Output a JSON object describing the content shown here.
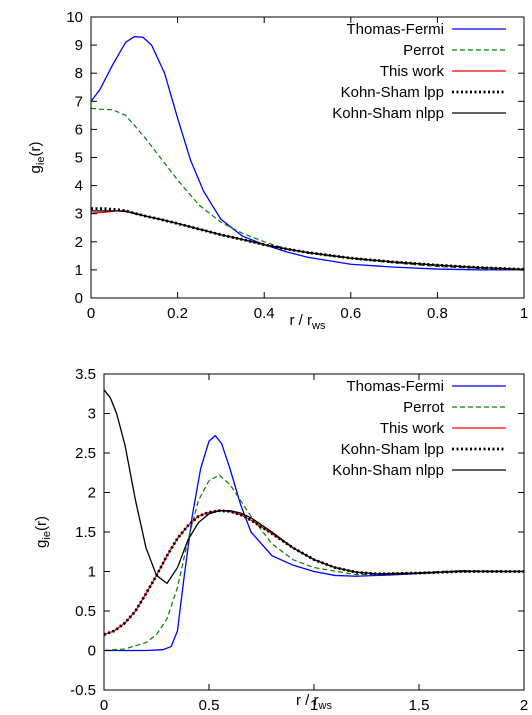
{
  "chart_data": [
    {
      "type": "line",
      "title": "",
      "xlabel_main": "r / r",
      "xlabel_sub": "ws",
      "ylabel_main": "g",
      "ylabel_sub": "ie",
      "ylabel_tail": "(r)",
      "xlim": [
        0,
        1
      ],
      "ylim": [
        0,
        10
      ],
      "xticks": [
        0,
        0.2,
        0.4,
        0.6,
        0.8,
        1
      ],
      "xtick_labels": [
        "0",
        "0.2",
        "0.4",
        "0.6",
        "0.8",
        "1"
      ],
      "yticks": [
        0,
        1,
        2,
        3,
        4,
        5,
        6,
        7,
        8,
        9,
        10
      ],
      "ytick_labels": [
        "0",
        "1",
        "2",
        "3",
        "4",
        "5",
        "6",
        "7",
        "8",
        "9",
        "10"
      ],
      "grid": false,
      "legend_position": "top-right",
      "series": [
        {
          "name": "Thomas-Fermi",
          "color": "#0000ff",
          "dash": "solid",
          "x": [
            0,
            0.02,
            0.05,
            0.08,
            0.1,
            0.12,
            0.14,
            0.17,
            0.2,
            0.23,
            0.26,
            0.3,
            0.35,
            0.4,
            0.45,
            0.5,
            0.6,
            0.7,
            0.8,
            0.9,
            1.0
          ],
          "y": [
            7.0,
            7.4,
            8.3,
            9.1,
            9.3,
            9.28,
            9.0,
            8.0,
            6.4,
            4.9,
            3.8,
            2.8,
            2.2,
            1.9,
            1.65,
            1.45,
            1.2,
            1.1,
            1.03,
            1.0,
            1.0
          ]
        },
        {
          "name": "Perrot",
          "color": "#008000",
          "dash": "dashed",
          "x": [
            0,
            0.02,
            0.05,
            0.08,
            0.1,
            0.13,
            0.16,
            0.2,
            0.25,
            0.3,
            0.35,
            0.4,
            0.45,
            0.5,
            0.6,
            0.7,
            0.8,
            0.9,
            1.0
          ],
          "y": [
            6.75,
            6.72,
            6.7,
            6.5,
            6.15,
            5.6,
            5.0,
            4.2,
            3.3,
            2.7,
            2.3,
            2.0,
            1.75,
            1.6,
            1.4,
            1.25,
            1.12,
            1.05,
            1.0
          ]
        },
        {
          "name": "This work",
          "color": "#ff0000",
          "dash": "solid",
          "x": [
            0,
            0.03,
            0.06,
            0.08,
            0.1,
            0.13,
            0.16,
            0.2,
            0.25,
            0.3,
            0.35,
            0.4,
            0.45,
            0.5,
            0.6,
            0.7,
            0.8,
            0.9,
            1.0
          ],
          "y": [
            3.02,
            3.05,
            3.1,
            3.1,
            3.0,
            2.9,
            2.8,
            2.65,
            2.45,
            2.25,
            2.08,
            1.9,
            1.75,
            1.62,
            1.42,
            1.28,
            1.17,
            1.08,
            1.02
          ]
        },
        {
          "name": "Kohn-Sham lpp",
          "color": "#000000",
          "dash": "dotted",
          "x": [
            0,
            0.03,
            0.06,
            0.08,
            0.1,
            0.13,
            0.16,
            0.2,
            0.25,
            0.3,
            0.35,
            0.4,
            0.45,
            0.5,
            0.6,
            0.7,
            0.8,
            0.9,
            1.0
          ],
          "y": [
            3.18,
            3.18,
            3.15,
            3.1,
            3.02,
            2.9,
            2.8,
            2.65,
            2.45,
            2.25,
            2.08,
            1.9,
            1.75,
            1.62,
            1.42,
            1.28,
            1.17,
            1.08,
            1.02
          ]
        },
        {
          "name": "Kohn-Sham nlpp",
          "color": "#000000",
          "dash": "solid",
          "x": [
            0,
            0.03,
            0.06,
            0.08,
            0.1,
            0.13,
            0.16,
            0.2,
            0.25,
            0.3,
            0.35,
            0.4,
            0.45,
            0.5,
            0.6,
            0.7,
            0.8,
            0.9,
            1.0
          ],
          "y": [
            3.1,
            3.1,
            3.1,
            3.08,
            3.02,
            2.9,
            2.8,
            2.65,
            2.45,
            2.25,
            2.08,
            1.9,
            1.75,
            1.62,
            1.42,
            1.28,
            1.17,
            1.08,
            1.02
          ]
        }
      ]
    },
    {
      "type": "line",
      "title": "",
      "xlabel_main": "r / r",
      "xlabel_sub": "ws",
      "ylabel_main": "g",
      "ylabel_sub": "ie",
      "ylabel_tail": "(r)",
      "xlim": [
        0,
        2
      ],
      "ylim": [
        -0.5,
        3.5
      ],
      "xticks": [
        0,
        0.5,
        1,
        1.5,
        2
      ],
      "xtick_labels": [
        "0",
        "0.5",
        "1",
        "1.5",
        "2"
      ],
      "yticks": [
        -0.5,
        0,
        0.5,
        1,
        1.5,
        2,
        2.5,
        3,
        3.5
      ],
      "ytick_labels": [
        "-0.5",
        "0",
        "0.5",
        "1",
        "1.5",
        "2",
        "2.5",
        "3",
        "3.5"
      ],
      "grid": false,
      "legend_position": "top-right",
      "series": [
        {
          "name": "Thomas-Fermi",
          "color": "#0000ff",
          "dash": "solid",
          "x": [
            0,
            0.1,
            0.2,
            0.28,
            0.32,
            0.35,
            0.38,
            0.42,
            0.46,
            0.5,
            0.53,
            0.56,
            0.6,
            0.65,
            0.7,
            0.8,
            0.9,
            1.0,
            1.1,
            1.2,
            1.4,
            1.6,
            1.7,
            1.8,
            2.0
          ],
          "y": [
            0,
            0,
            0,
            0.01,
            0.05,
            0.25,
            0.9,
            1.7,
            2.3,
            2.65,
            2.72,
            2.62,
            2.3,
            1.85,
            1.5,
            1.2,
            1.08,
            1.0,
            0.95,
            0.94,
            0.96,
            0.99,
            1.01,
            1.0,
            1.0
          ]
        },
        {
          "name": "Perrot",
          "color": "#008000",
          "dash": "dashed",
          "x": [
            0,
            0.1,
            0.2,
            0.25,
            0.3,
            0.35,
            0.4,
            0.45,
            0.5,
            0.55,
            0.6,
            0.7,
            0.8,
            0.9,
            1.0,
            1.2,
            1.4,
            1.6,
            1.8,
            2.0
          ],
          "y": [
            0.0,
            0.02,
            0.1,
            0.2,
            0.4,
            0.8,
            1.4,
            1.9,
            2.15,
            2.22,
            2.1,
            1.7,
            1.35,
            1.15,
            1.05,
            0.96,
            0.97,
            1.0,
            1.01,
            1.0
          ]
        },
        {
          "name": "This work",
          "color": "#ff0000",
          "dash": "solid",
          "x": [
            0,
            0.05,
            0.1,
            0.15,
            0.2,
            0.25,
            0.3,
            0.35,
            0.4,
            0.45,
            0.5,
            0.55,
            0.6,
            0.65,
            0.7,
            0.8,
            0.9,
            1.0,
            1.1,
            1.2,
            1.3,
            1.5,
            1.7,
            2.0
          ],
          "y": [
            0.2,
            0.25,
            0.35,
            0.5,
            0.72,
            0.95,
            1.2,
            1.42,
            1.58,
            1.7,
            1.75,
            1.77,
            1.76,
            1.72,
            1.65,
            1.48,
            1.3,
            1.15,
            1.05,
            0.99,
            0.97,
            0.98,
            1.0,
            1.0
          ]
        },
        {
          "name": "Kohn-Sham lpp",
          "color": "#000000",
          "dash": "dotted",
          "x": [
            0,
            0.05,
            0.1,
            0.15,
            0.2,
            0.25,
            0.3,
            0.35,
            0.4,
            0.45,
            0.5,
            0.55,
            0.6,
            0.65,
            0.7,
            0.8,
            0.9,
            1.0,
            1.1,
            1.2,
            1.3,
            1.5,
            1.7,
            2.0
          ],
          "y": [
            0.2,
            0.25,
            0.35,
            0.5,
            0.72,
            0.95,
            1.2,
            1.42,
            1.58,
            1.7,
            1.75,
            1.77,
            1.76,
            1.72,
            1.65,
            1.48,
            1.3,
            1.15,
            1.05,
            0.99,
            0.97,
            0.98,
            1.0,
            1.0
          ]
        },
        {
          "name": "Kohn-Sham nlpp",
          "color": "#000000",
          "dash": "solid",
          "x": [
            0,
            0.03,
            0.06,
            0.1,
            0.15,
            0.2,
            0.25,
            0.3,
            0.35,
            0.4,
            0.45,
            0.5,
            0.55,
            0.6,
            0.65,
            0.7,
            0.8,
            0.9,
            1.0,
            1.1,
            1.2,
            1.3,
            1.5,
            1.7,
            2.0
          ],
          "y": [
            3.3,
            3.2,
            3.0,
            2.6,
            1.9,
            1.3,
            0.95,
            0.85,
            1.05,
            1.4,
            1.62,
            1.73,
            1.77,
            1.77,
            1.74,
            1.68,
            1.5,
            1.3,
            1.15,
            1.05,
            0.99,
            0.97,
            0.98,
            1.0,
            1.0
          ]
        }
      ]
    }
  ]
}
